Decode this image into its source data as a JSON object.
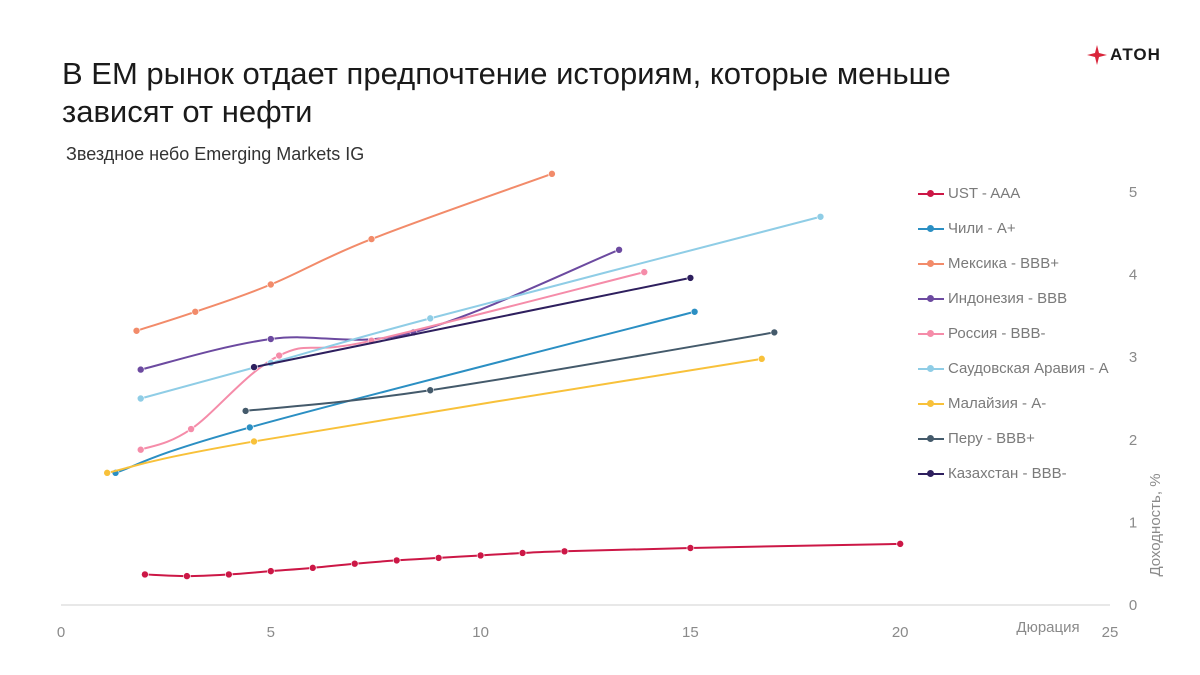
{
  "header": {
    "title": "В ЕМ рынок отдает предпочтение историям, которые меньше зависят от нефти",
    "subtitle": "Звездное небо Emerging Markets IG",
    "logo_text": "АТОН",
    "logo_color": "#d9263b"
  },
  "chart_data": {
    "type": "line",
    "title": "В ЕМ рынок отдает предпочтение историям, которые меньше зависят от нефти",
    "subtitle": "Звездное небо Emerging Markets IG",
    "xlabel": "Дюрация",
    "ylabel": "Доходность, %",
    "xlim": [
      0,
      25
    ],
    "ylim": [
      0,
      5
    ],
    "xticks": [
      0,
      5,
      10,
      15,
      20,
      25
    ],
    "yticks": [
      0,
      1,
      2,
      3,
      4,
      5
    ],
    "y_axis_position": "right",
    "grid": false,
    "legend_position": "right",
    "series": [
      {
        "name": "UST - AAA",
        "color": "#cc1746",
        "x": [
          2,
          3,
          4,
          5,
          6,
          7,
          8,
          9,
          10,
          11,
          12,
          15,
          20
        ],
        "y": [
          0.37,
          0.35,
          0.37,
          0.41,
          0.45,
          0.5,
          0.54,
          0.57,
          0.6,
          0.63,
          0.65,
          0.69,
          0.74
        ]
      },
      {
        "name": "Чили - A+",
        "color": "#2b8fc3",
        "x": [
          1.3,
          4.5,
          15.1
        ],
        "y": [
          1.6,
          2.15,
          3.55
        ]
      },
      {
        "name": "Мексика - BBB+",
        "color": "#f28b6a",
        "x": [
          1.8,
          3.2,
          5.0,
          7.4,
          11.7
        ],
        "y": [
          3.32,
          3.55,
          3.88,
          4.43,
          5.22
        ]
      },
      {
        "name": "Индонезия - BBB",
        "color": "#6c4aa0",
        "x": [
          1.9,
          5.0,
          8.4,
          13.3
        ],
        "y": [
          2.85,
          3.22,
          3.3,
          4.3
        ]
      },
      {
        "name": "Россия - BBB-",
        "color": "#f58ca9",
        "x": [
          1.9,
          3.1,
          5.2,
          7.4,
          13.9
        ],
        "y": [
          1.88,
          2.13,
          3.02,
          3.2,
          4.03
        ]
      },
      {
        "name": "Саудовская Аравия - А",
        "color": "#8fcde6",
        "x": [
          1.9,
          5.0,
          8.8,
          18.1
        ],
        "y": [
          2.5,
          2.93,
          3.47,
          4.7
        ]
      },
      {
        "name": "Малайзия - А-",
        "color": "#f8c13a",
        "x": [
          1.1,
          4.6,
          16.7
        ],
        "y": [
          1.6,
          1.98,
          2.98
        ]
      },
      {
        "name": "Перу - BBB+",
        "color": "#445a6b",
        "x": [
          4.4,
          8.8,
          17.0
        ],
        "y": [
          2.35,
          2.6,
          3.3
        ]
      },
      {
        "name": "Казахстан - BBB-",
        "color": "#2e1f5e",
        "x": [
          4.6,
          15.0
        ],
        "y": [
          2.88,
          3.96
        ]
      }
    ]
  }
}
